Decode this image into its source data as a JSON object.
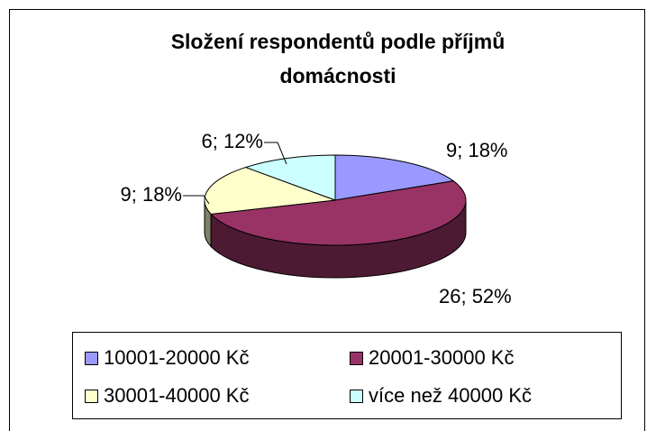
{
  "chart_data": {
    "type": "pie3d",
    "title": [
      "Složení respondentů podle příjmů",
      "domácnosti"
    ],
    "categories": [
      "10001-20000 Kč",
      "20001-30000 Kč",
      "30001-40000 Kč",
      "více než 40000 Kč"
    ],
    "values": [
      9,
      26,
      9,
      6
    ],
    "value_labels": [
      "9; 18%",
      "26; 52%",
      "9; 18%",
      "6; 12%"
    ],
    "colors": [
      "#9999ff",
      "#993366",
      "#ffffcc",
      "#ccffff"
    ],
    "legend": "bottom"
  }
}
